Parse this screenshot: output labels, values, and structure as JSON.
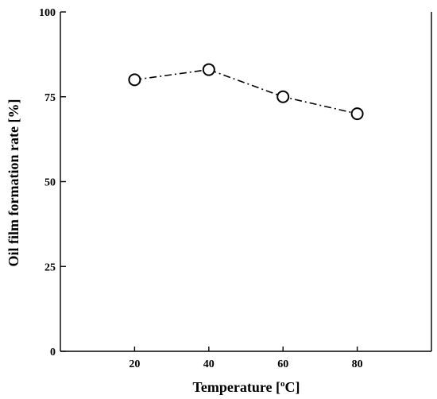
{
  "chart_data": {
    "type": "line",
    "title": "",
    "xlabel": {
      "main": "Temperature [",
      "superscript": "o",
      "unit_end": "C]"
    },
    "ylabel": "Oil film formation rate [%]",
    "x": [
      20,
      40,
      60,
      80
    ],
    "series": [
      {
        "values": [
          80,
          83,
          75,
          70
        ],
        "marker": "open-circle",
        "line_style": "dash-dot",
        "color": "#000000"
      }
    ],
    "xlim": [
      0,
      100
    ],
    "ylim": [
      0,
      100
    ],
    "xticks": [
      "20",
      "40",
      "60",
      "80"
    ],
    "yticks": [
      "0",
      "25",
      "50",
      "75",
      "100"
    ],
    "grid": false,
    "legend": "none"
  }
}
